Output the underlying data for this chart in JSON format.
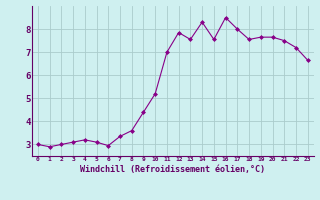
{
  "x": [
    0,
    1,
    2,
    3,
    4,
    5,
    6,
    7,
    8,
    9,
    10,
    11,
    12,
    13,
    14,
    15,
    16,
    17,
    18,
    19,
    20,
    21,
    22,
    23
  ],
  "y": [
    3.0,
    2.9,
    3.0,
    3.1,
    3.2,
    3.1,
    2.95,
    3.35,
    3.6,
    4.4,
    5.2,
    7.0,
    7.85,
    7.55,
    8.3,
    7.55,
    8.5,
    8.0,
    7.55,
    7.65,
    7.65,
    7.5,
    7.2,
    6.65
  ],
  "line_color": "#880088",
  "marker": "D",
  "marker_size": 2.0,
  "bg_color": "#cff0f0",
  "grid_color": "#aacccc",
  "xlabel": "Windchill (Refroidissement éolien,°C)",
  "xlim": [
    -0.5,
    23.5
  ],
  "ylim": [
    2.5,
    9.0
  ],
  "yticks": [
    3,
    4,
    5,
    6,
    7,
    8
  ],
  "xticks": [
    0,
    1,
    2,
    3,
    4,
    5,
    6,
    7,
    8,
    9,
    10,
    11,
    12,
    13,
    14,
    15,
    16,
    17,
    18,
    19,
    20,
    21,
    22,
    23
  ],
  "xlabel_color": "#660066",
  "tick_color": "#660066",
  "spine_color": "#660066",
  "linewidth": 0.8
}
